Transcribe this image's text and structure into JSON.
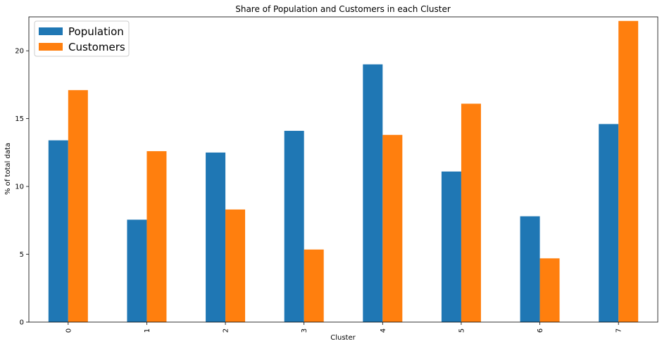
{
  "chart_data": {
    "type": "bar",
    "title": "Share of Population and Customers in each Cluster",
    "xlabel": "Cluster",
    "ylabel": "% of total data",
    "categories": [
      "0",
      "1",
      "2",
      "3",
      "4",
      "5",
      "6",
      "7"
    ],
    "series": [
      {
        "name": "Population",
        "color": "#1f77b4",
        "values": [
          13.4,
          7.55,
          12.5,
          14.1,
          19.0,
          11.1,
          7.8,
          14.6
        ]
      },
      {
        "name": "Customers",
        "color": "#ff7f0e",
        "values": [
          17.1,
          12.6,
          8.3,
          5.35,
          13.8,
          16.1,
          4.7,
          22.2
        ]
      }
    ],
    "yticks": [
      0,
      5,
      10,
      15,
      20
    ],
    "ylim": [
      0,
      22.5
    ],
    "grid": false,
    "legend_position": "top-left"
  }
}
